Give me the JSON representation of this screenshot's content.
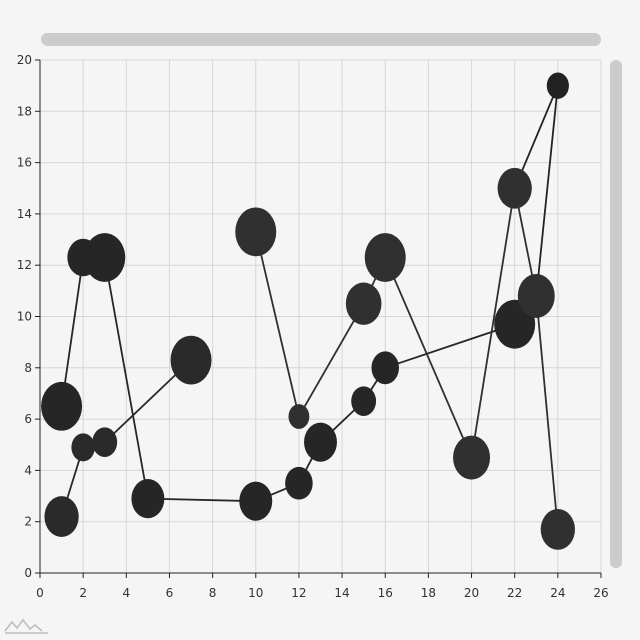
{
  "chart_data": {
    "type": "scatter",
    "xlim": [
      0,
      26
    ],
    "ylim": [
      0,
      20
    ],
    "x_ticks": [
      0,
      2,
      4,
      6,
      8,
      10,
      12,
      14,
      16,
      18,
      20,
      22,
      24,
      26
    ],
    "y_ticks": [
      0,
      2,
      4,
      6,
      8,
      10,
      12,
      14,
      16,
      18,
      20
    ],
    "grid": true,
    "series": [
      {
        "color": "#2a2a2a",
        "points": [
          {
            "x": 1,
            "y": 2.2,
            "size": 1.8
          },
          {
            "x": 2,
            "y": 4.9,
            "size": 1.0
          },
          {
            "x": 3,
            "y": 5.1,
            "size": 1.1
          },
          {
            "x": 7,
            "y": 8.3,
            "size": 2.3
          }
        ]
      },
      {
        "color": "#262626",
        "points": [
          {
            "x": 1,
            "y": 6.5,
            "size": 2.3
          },
          {
            "x": 2,
            "y": 12.3,
            "size": 1.6
          },
          {
            "x": 3,
            "y": 12.3,
            "size": 2.3
          },
          {
            "x": 5,
            "y": 2.9,
            "size": 1.7
          },
          {
            "x": 10,
            "y": 2.8,
            "size": 1.7
          },
          {
            "x": 12,
            "y": 3.5,
            "size": 1.3
          },
          {
            "x": 13,
            "y": 5.1,
            "size": 1.7
          },
          {
            "x": 15,
            "y": 6.7,
            "size": 1.1
          },
          {
            "x": 16,
            "y": 8.0,
            "size": 1.3
          },
          {
            "x": 22,
            "y": 9.7,
            "size": 2.3
          }
        ]
      },
      {
        "color": "#303030",
        "points": [
          {
            "x": 10,
            "y": 13.3,
            "size": 2.3
          },
          {
            "x": 12,
            "y": 6.1,
            "size": 0.8
          },
          {
            "x": 15,
            "y": 10.5,
            "size": 1.9
          },
          {
            "x": 16,
            "y": 12.3,
            "size": 2.3
          },
          {
            "x": 20,
            "y": 4.5,
            "size": 2.0
          },
          {
            "x": 22,
            "y": 15.0,
            "size": 1.8
          },
          {
            "x": 23,
            "y": 10.8,
            "size": 2.0
          },
          {
            "x": 24,
            "y": 1.7,
            "size": 1.8
          }
        ]
      },
      {
        "color": "#222222",
        "points": [
          {
            "x": 22,
            "y": 15.0,
            "size": 0.0
          },
          {
            "x": 24,
            "y": 19.0,
            "size": 0.9
          },
          {
            "x": 23,
            "y": 10.8,
            "size": 0.0
          }
        ]
      }
    ]
  }
}
